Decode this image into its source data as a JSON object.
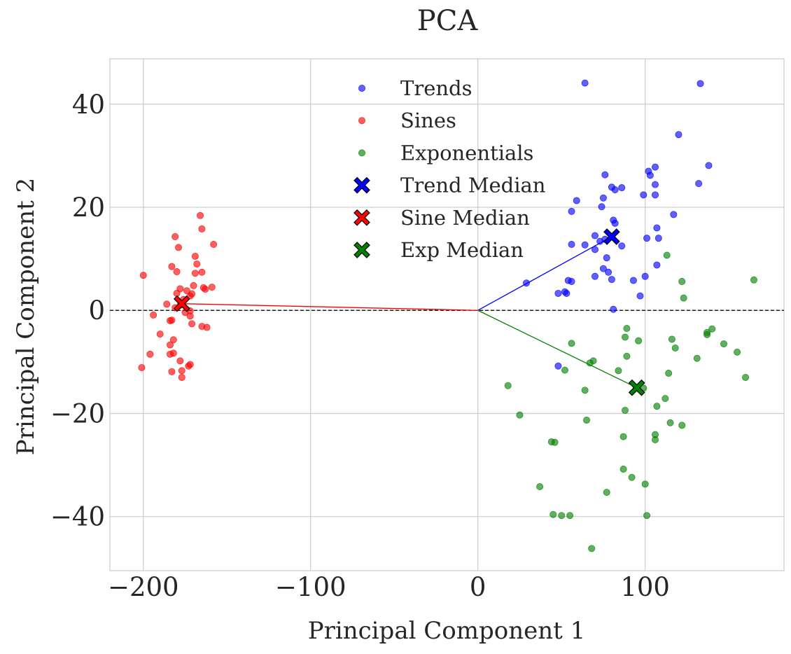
{
  "chart_data": {
    "type": "scatter",
    "title": "PCA",
    "xlabel": "Principal Component 1",
    "ylabel": "Principal Component 2",
    "xlim": [
      -220,
      183
    ],
    "ylim": [
      -50.5,
      48.8
    ],
    "xticks": [
      -200,
      -100,
      0,
      100
    ],
    "yticks": [
      -40,
      -20,
      0,
      20,
      40
    ],
    "xtick_labels": [
      "−200",
      "−100",
      "0",
      "100"
    ],
    "ytick_labels": [
      "−40",
      "−20",
      "0",
      "20",
      "40"
    ],
    "grid": true,
    "legend_position": "top-center",
    "reference_line_y": 0,
    "series": [
      {
        "name": "Trends",
        "color": "#0000ff",
        "points": [
          [
            64,
            44.1
          ],
          [
            133,
            44
          ],
          [
            120,
            34.1
          ],
          [
            138,
            28.1
          ],
          [
            106,
            27.8
          ],
          [
            102,
            27
          ],
          [
            103,
            26.2
          ],
          [
            76,
            26.3
          ],
          [
            132,
            24.6
          ],
          [
            106,
            24.4
          ],
          [
            86,
            23.8
          ],
          [
            80,
            23.9
          ],
          [
            82,
            23.4
          ],
          [
            99,
            22.4
          ],
          [
            106,
            22.4
          ],
          [
            75,
            21.8
          ],
          [
            59,
            21.3
          ],
          [
            74,
            20.1
          ],
          [
            117,
            18.6
          ],
          [
            56,
            19.2
          ],
          [
            81,
            17.5
          ],
          [
            82,
            16.9
          ],
          [
            107,
            16
          ],
          [
            70,
            14.5
          ],
          [
            101,
            14
          ],
          [
            108,
            14
          ],
          [
            76,
            13.8
          ],
          [
            73,
            13.4
          ],
          [
            56,
            12.8
          ],
          [
            64,
            12.7
          ],
          [
            86,
            12.5
          ],
          [
            70,
            11.8
          ],
          [
            77,
            10.2
          ],
          [
            75,
            8.1
          ],
          [
            107,
            8.8
          ],
          [
            78,
            7.4
          ],
          [
            70,
            6.6
          ],
          [
            80,
            6
          ],
          [
            93,
            5.8
          ],
          [
            100,
            6.6
          ],
          [
            54,
            5.8
          ],
          [
            56,
            5.6
          ],
          [
            29,
            5.3
          ],
          [
            52,
            3.6
          ],
          [
            53,
            3.3
          ],
          [
            48,
            3.3
          ],
          [
            97,
            2.8
          ],
          [
            81,
            0.2
          ],
          [
            48,
            -10.8
          ]
        ]
      },
      {
        "name": "Sines",
        "color": "#ff0000",
        "points": [
          [
            -166,
            18.4
          ],
          [
            -165,
            15.8
          ],
          [
            -158,
            12.8
          ],
          [
            -181,
            14.3
          ],
          [
            -179,
            12.2
          ],
          [
            -169,
            10.5
          ],
          [
            -168,
            9
          ],
          [
            -183,
            8.5
          ],
          [
            -200,
            6.8
          ],
          [
            -180,
            7.5
          ],
          [
            -165,
            7.4
          ],
          [
            -169,
            7.2
          ],
          [
            -159,
            4.5
          ],
          [
            -164,
            4.4
          ],
          [
            -163,
            4.1
          ],
          [
            -170,
            4.8
          ],
          [
            -178,
            4.2
          ],
          [
            -174,
            3.8
          ],
          [
            -180,
            3.3
          ],
          [
            -171,
            3.2
          ],
          [
            -172,
            2.8
          ],
          [
            -176,
            2.1
          ],
          [
            -186,
            1.2
          ],
          [
            -178,
            1
          ],
          [
            -181,
            0.5
          ],
          [
            -172,
            -0.1
          ],
          [
            -175,
            -0.4
          ],
          [
            -172,
            -1.1
          ],
          [
            -194,
            -0.9
          ],
          [
            -184,
            -2
          ],
          [
            -183,
            -1.9
          ],
          [
            -171,
            -2.6
          ],
          [
            -165,
            -3.1
          ],
          [
            -162,
            -3.3
          ],
          [
            -190,
            -4.6
          ],
          [
            -182,
            -5.7
          ],
          [
            -184,
            -6.7
          ],
          [
            -196,
            -8.5
          ],
          [
            -184,
            -8.5
          ],
          [
            -182,
            -8.3
          ],
          [
            -178,
            -9.8
          ],
          [
            -172,
            -10.5
          ],
          [
            -173,
            -10.8
          ],
          [
            -201,
            -11.1
          ],
          [
            -177,
            -11.7
          ],
          [
            -183,
            -11.9
          ],
          [
            -177,
            -13
          ]
        ]
      },
      {
        "name": "Exponentials",
        "color": "#008000",
        "points": [
          [
            165,
            5.9
          ],
          [
            122,
            5.6
          ],
          [
            123,
            2.4
          ],
          [
            113,
            10.7
          ],
          [
            140,
            -3.6
          ],
          [
            137,
            -4.3
          ],
          [
            137,
            -4.7
          ],
          [
            89,
            -3.5
          ],
          [
            88,
            -5.2
          ],
          [
            96,
            -5.9
          ],
          [
            116,
            -5.6
          ],
          [
            118,
            -7.3
          ],
          [
            56,
            -6.4
          ],
          [
            147,
            -6.5
          ],
          [
            155,
            -8.1
          ],
          [
            131,
            -9.3
          ],
          [
            89,
            -8.9
          ],
          [
            69,
            -9.8
          ],
          [
            67,
            -10.2
          ],
          [
            52,
            -11.6
          ],
          [
            84,
            -11.7
          ],
          [
            114,
            -12.2
          ],
          [
            160,
            -13
          ],
          [
            18,
            -14.6
          ],
          [
            99,
            -15.1
          ],
          [
            64,
            -15.5
          ],
          [
            112,
            -17.1
          ],
          [
            107,
            -18.6
          ],
          [
            88,
            -19.4
          ],
          [
            25,
            -20.3
          ],
          [
            65,
            -21.3
          ],
          [
            115,
            -21.8
          ],
          [
            122,
            -22.3
          ],
          [
            106,
            -24.1
          ],
          [
            87,
            -24.5
          ],
          [
            106,
            -25.1
          ],
          [
            44,
            -25.5
          ],
          [
            46,
            -25.6
          ],
          [
            37,
            -34.2
          ],
          [
            100,
            -33.7
          ],
          [
            92,
            -32.4
          ],
          [
            87,
            -30.8
          ],
          [
            77,
            -35.3
          ],
          [
            45,
            -39.6
          ],
          [
            50,
            -39.8
          ],
          [
            55,
            -39.8
          ],
          [
            101,
            -39.8
          ],
          [
            68,
            -46.2
          ]
        ]
      }
    ],
    "medians": [
      {
        "name": "Trend Median",
        "color": "#0000ff",
        "x": 80,
        "y": 14.3
      },
      {
        "name": "Sine Median",
        "color": "#ff0000",
        "x": -177,
        "y": 1.3
      },
      {
        "name": "Exp Median",
        "color": "#008000",
        "x": 95,
        "y": -15
      }
    ],
    "legend": [
      {
        "label": "Trends",
        "marker": "dot",
        "color": "#0000ff"
      },
      {
        "label": "Sines",
        "marker": "dot",
        "color": "#ff0000"
      },
      {
        "label": "Exponentials",
        "marker": "dot",
        "color": "#008000"
      },
      {
        "label": "Trend Median",
        "marker": "x",
        "color": "#0000ff"
      },
      {
        "label": "Sine Median",
        "marker": "x",
        "color": "#ff0000"
      },
      {
        "label": "Exp Median",
        "marker": "x",
        "color": "#008000"
      }
    ]
  }
}
